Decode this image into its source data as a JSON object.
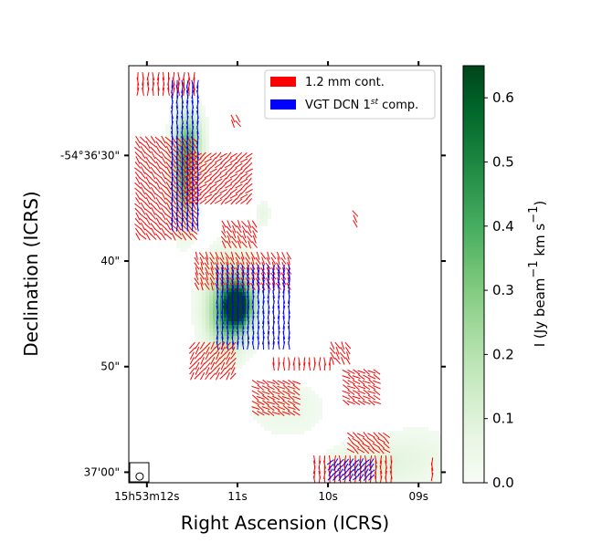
{
  "chart_data": {
    "type": "heatmap",
    "title": "",
    "xlabel": "Right Ascension (ICRS)",
    "ylabel": "Declination (ICRS)",
    "x_ticks": [
      {
        "label": "15h53m12s",
        "ra_s": 12
      },
      {
        "label": "11s",
        "ra_s": 11
      },
      {
        "label": "10s",
        "ra_s": 10
      },
      {
        "label": "09s",
        "ra_s": 9
      }
    ],
    "y_ticks": [
      {
        "label": "-54°36'30\"",
        "dec_arcsec": 30
      },
      {
        "label": "40\"",
        "dec_arcsec": 40
      },
      {
        "label": "50\"",
        "dec_arcsec": 50
      },
      {
        "label": "37'00\"",
        "dec_arcsec": 60
      }
    ],
    "xlim_ra_s": [
      12.2,
      8.75
    ],
    "ylim_dec_arcsec": [
      21.5,
      61.0
    ],
    "colorbar": {
      "label": "I (Jy beam⁻¹ km s⁻¹)",
      "cmap": "Greens",
      "range": [
        0.0,
        0.65
      ],
      "ticks": [
        0.0,
        0.1,
        0.2,
        0.3,
        0.4,
        0.5,
        0.6
      ],
      "tick_labels": [
        "0.0",
        "0.1",
        "0.2",
        "0.3",
        "0.4",
        "0.5",
        "0.6"
      ]
    },
    "legend": {
      "location": "top-right",
      "entries": [
        {
          "label": "1.2 mm cont.",
          "color": "#ff0000"
        },
        {
          "label": "VGT DCN 1st comp.",
          "color": "#0000ff"
        }
      ]
    },
    "emission_components": [
      {
        "ra_s": 11.62,
        "dec_arcsec": 31.2,
        "peak": 0.28,
        "sx": 0.08,
        "sy": 3.2
      },
      {
        "ra_s": 11.5,
        "dec_arcsec": 28.8,
        "peak": 0.25,
        "sx": 0.09,
        "sy": 2.0
      },
      {
        "ra_s": 11.55,
        "dec_arcsec": 34.0,
        "peak": 0.15,
        "sx": 0.07,
        "sy": 2.0
      },
      {
        "ra_s": 11.0,
        "dec_arcsec": 44.2,
        "peak": 0.62,
        "sx": 0.1,
        "sy": 1.3
      },
      {
        "ra_s": 11.08,
        "dec_arcsec": 43.5,
        "peak": 0.28,
        "sx": 0.18,
        "sy": 2.6
      },
      {
        "ra_s": 11.12,
        "dec_arcsec": 46.0,
        "peak": 0.18,
        "sx": 0.15,
        "sy": 1.9
      },
      {
        "ra_s": 10.72,
        "dec_arcsec": 35.5,
        "peak": 0.07,
        "sx": 0.05,
        "sy": 0.8
      },
      {
        "ra_s": 10.45,
        "dec_arcsec": 54.0,
        "peak": 0.05,
        "sx": 0.3,
        "sy": 1.8
      },
      {
        "ra_s": 9.55,
        "dec_arcsec": 59.2,
        "peak": 0.09,
        "sx": 0.3,
        "sy": 1.3
      },
      {
        "ra_s": 9.0,
        "dec_arcsec": 58.5,
        "peak": 0.05,
        "sx": 0.3,
        "sy": 2.0
      }
    ],
    "vector_regions": [
      {
        "series": "1.2 mm cont.",
        "ra": [
          11.45,
          12.1
        ],
        "dec": [
          22.5,
          24.0
        ],
        "angle_deg": 0
      },
      {
        "series": "1.2 mm cont.",
        "ra": [
          11.45,
          12.1
        ],
        "dec": [
          28.5,
          37.8
        ],
        "angle_deg": 40
      },
      {
        "series": "VGT DCN 1st comp.",
        "ra": [
          11.42,
          11.75
        ],
        "dec": [
          23.0,
          37.0
        ],
        "angle_deg": 0
      },
      {
        "series": "1.2 mm cont.",
        "ra": [
          10.85,
          11.55
        ],
        "dec": [
          30.0,
          34.5
        ],
        "angle_deg": -50
      },
      {
        "series": "1.2 mm cont.",
        "ra": [
          10.95,
          11.05
        ],
        "dec": [
          26.5,
          27.0
        ],
        "angle_deg": 30
      },
      {
        "series": "1.2 mm cont.",
        "ra": [
          10.4,
          11.45
        ],
        "dec": [
          39.5,
          42.5
        ],
        "angle_deg": 25
      },
      {
        "series": "VGT DCN 1st comp.",
        "ra": [
          10.4,
          11.25
        ],
        "dec": [
          40.5,
          48.0
        ],
        "angle_deg": 0
      },
      {
        "series": "1.2 mm cont.",
        "ra": [
          10.8,
          11.15
        ],
        "dec": [
          36.5,
          38.5
        ],
        "angle_deg": 30
      },
      {
        "series": "1.2 mm cont.",
        "ra": [
          11.0,
          11.5
        ],
        "dec": [
          48.0,
          51.0
        ],
        "angle_deg": -35
      },
      {
        "series": "1.2 mm cont.",
        "ra": [
          10.3,
          10.8
        ],
        "dec": [
          51.5,
          54.5
        ],
        "angle_deg": 60
      },
      {
        "series": "1.2 mm cont.",
        "ra": [
          9.95,
          10.6
        ],
        "dec": [
          49.5,
          50.0
        ],
        "angle_deg": 0
      },
      {
        "series": "1.2 mm cont.",
        "ra": [
          9.45,
          9.8
        ],
        "dec": [
          50.5,
          53.5
        ],
        "angle_deg": 60
      },
      {
        "series": "1.2 mm cont.",
        "ra": [
          9.78,
          9.95
        ],
        "dec": [
          48.0,
          49.5
        ],
        "angle_deg": 30
      },
      {
        "series": "1.2 mm cont.",
        "ra": [
          9.3,
          9.75
        ],
        "dec": [
          56.5,
          58.0
        ],
        "angle_deg": 50
      },
      {
        "series": "1.2 mm cont.",
        "ra": [
          9.3,
          10.15
        ],
        "dec": [
          58.8,
          60.8
        ],
        "angle_deg": 0
      },
      {
        "series": "VGT DCN 1st comp.",
        "ra": [
          9.5,
          10.0
        ],
        "dec": [
          58.8,
          60.8
        ],
        "angle_deg": -40
      },
      {
        "series": "1.2 mm cont.",
        "ra": [
          8.8,
          8.85
        ],
        "dec": [
          59.0,
          60.5
        ],
        "angle_deg": 0
      },
      {
        "series": "1.2 mm cont.",
        "ra": [
          9.65,
          9.7
        ],
        "dec": [
          35.5,
          36.5
        ],
        "angle_deg": 35
      }
    ],
    "beam": {
      "ra_s": 12.08,
      "dec_arcsec": 60.4,
      "major_arcsec": 0.7,
      "minor_arcsec": 0.7
    }
  },
  "legend_entries": {
    "cont_label": "1.2 mm cont.",
    "vgt_label_main": "VGT DCN 1",
    "vgt_label_sup": "st",
    "vgt_label_end": " comp."
  },
  "colorbar_label": {
    "main": "I (Jy beam",
    "sup1": "−1",
    "mid": " km s",
    "sup2": "−1",
    "end": ")"
  }
}
